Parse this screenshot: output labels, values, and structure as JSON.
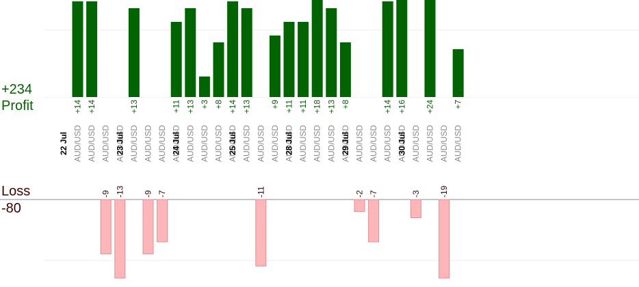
{
  "summary": {
    "profit_total": "+234",
    "profit_label": "Profit",
    "loss_label": "Loss",
    "loss_total": "-80"
  },
  "colors": {
    "profit_bar": "#006400",
    "profit_text": "#006400",
    "loss_bar": "#ffb6b8",
    "loss_bar_stroke": "#e28f95",
    "loss_text": "#400000",
    "pair_text": "#8a8a8a",
    "date_text": "#000000",
    "grid": "#eeeeee",
    "baseline": "#888888"
  },
  "chart_data": {
    "type": "bar",
    "profit_scale_max": 14,
    "loss_scale_max": -13,
    "columns": [
      {
        "date": "22 Jul",
        "pair": "AUD/USD",
        "value": 14,
        "label": "+14"
      },
      {
        "date": "",
        "pair": "AUD/USD",
        "value": 14,
        "label": "+14"
      },
      {
        "date": "",
        "pair": "AUD/USD",
        "value": -9,
        "label": "-9"
      },
      {
        "date": "",
        "pair": "AUD/USD",
        "value": -13,
        "label": "-13"
      },
      {
        "date": "23 Jul",
        "pair": "AUD/USD",
        "value": 13,
        "label": "+13"
      },
      {
        "date": "",
        "pair": "AUD/USD",
        "value": -9,
        "label": "-9"
      },
      {
        "date": "",
        "pair": "AUD/USD",
        "value": -7,
        "label": "-7"
      },
      {
        "date": "",
        "pair": "AUD/USD",
        "value": 11,
        "label": "+11"
      },
      {
        "date": "24 Jul",
        "pair": "AUD/USD",
        "value": 13,
        "label": "+13"
      },
      {
        "date": "",
        "pair": "AUD/USD",
        "value": 3,
        "label": "+3"
      },
      {
        "date": "",
        "pair": "AUD/USD",
        "value": 8,
        "label": "+8"
      },
      {
        "date": "",
        "pair": "AUD/USD",
        "value": 14,
        "label": "+14"
      },
      {
        "date": "25 Jul",
        "pair": "AUD/USD",
        "value": 13,
        "label": "+13"
      },
      {
        "date": "",
        "pair": "AUD/USD",
        "value": -11,
        "label": "-11"
      },
      {
        "date": "",
        "pair": "AUD/USD",
        "value": 9,
        "label": "+9"
      },
      {
        "date": "",
        "pair": "AUD/USD",
        "value": 11,
        "label": "+11"
      },
      {
        "date": "28 Jul",
        "pair": "AUD/USD",
        "value": 11,
        "label": "+11"
      },
      {
        "date": "",
        "pair": "AUD/USD",
        "value": 18,
        "label": "+18"
      },
      {
        "date": "",
        "pair": "AUD/USD",
        "value": 13,
        "label": "+13"
      },
      {
        "date": "",
        "pair": "AUD/USD",
        "value": 8,
        "label": "+8"
      },
      {
        "date": "29 Jul",
        "pair": "AUD/USD",
        "value": -2,
        "label": "-2"
      },
      {
        "date": "",
        "pair": "AUD/USD",
        "value": -7,
        "label": "-7"
      },
      {
        "date": "",
        "pair": "AUD/USD",
        "value": 14,
        "label": "+14"
      },
      {
        "date": "",
        "pair": "AUD/USD",
        "value": 16,
        "label": "+16"
      },
      {
        "date": "30 Jul",
        "pair": "AUD/USD",
        "value": -3,
        "label": "-3"
      },
      {
        "date": "",
        "pair": "AUD/USD",
        "value": 24,
        "label": "+24"
      },
      {
        "date": "",
        "pair": "AUD/USD",
        "value": -19,
        "label": "-19"
      },
      {
        "date": "",
        "pair": "AUD/USD",
        "value": 7,
        "label": "+7"
      }
    ]
  }
}
